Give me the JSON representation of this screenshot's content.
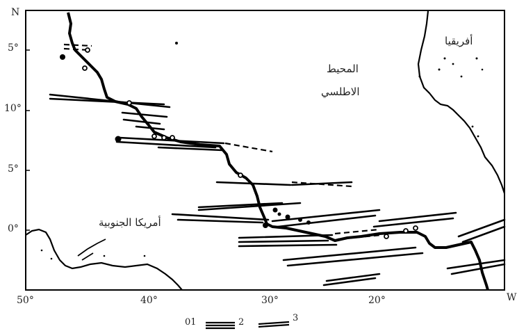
{
  "map": {
    "corner_north": "N",
    "corner_west": "W",
    "lat_labels": [
      "5°",
      "10°",
      "5°",
      "0°"
    ],
    "lon_labels": [
      "50°",
      "40°",
      "30°",
      "20°"
    ],
    "labels": {
      "africa": "أفريقيا",
      "ocean_line1": "المحيط",
      "ocean_line2": "الاطلسي",
      "south_america": "أمريكا الجنوبية"
    },
    "legend": {
      "item1": "01",
      "item2": "2",
      "item3": "3"
    }
  }
}
